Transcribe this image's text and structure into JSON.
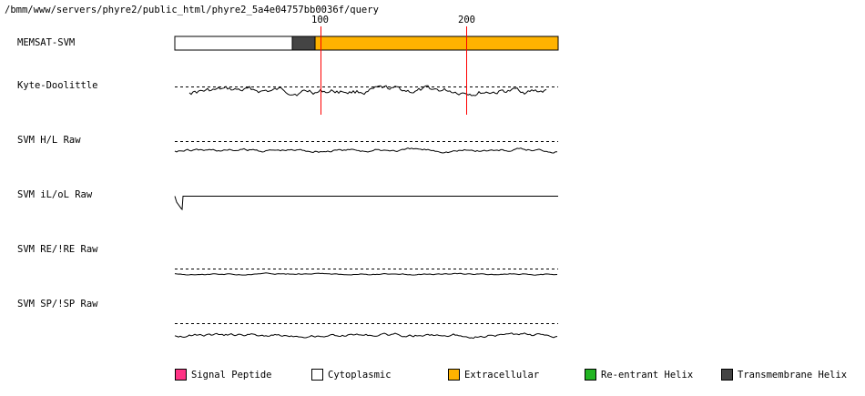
{
  "header": {
    "path": "/bmm/www/servers/phyre2/public_html/phyre2_5a4e04757bb0036f/query"
  },
  "ruler": {
    "ticks": [
      {
        "label": "100",
        "position": 100
      },
      {
        "label": "200",
        "position": 200
      }
    ],
    "sequence_length": 262,
    "marker_color": "#ff0000"
  },
  "tracks": [
    {
      "id": "memsat",
      "label": "MEMSAT-SVM"
    },
    {
      "id": "kd",
      "label": "Kyte-Doolittle"
    },
    {
      "id": "hl",
      "label": "SVM H/L Raw"
    },
    {
      "id": "io",
      "label": "SVM iL/oL Raw"
    },
    {
      "id": "re",
      "label": "SVM RE/!RE Raw"
    },
    {
      "id": "sp",
      "label": "SVM SP/!SP Raw"
    }
  ],
  "memsat_segments": [
    {
      "type": "Cytoplasmic",
      "start": 1,
      "end": 80,
      "color": "#ffffff"
    },
    {
      "type": "Transmembrane Helix",
      "start": 81,
      "end": 96,
      "color": "#444444"
    },
    {
      "type": "Extracellular",
      "start": 97,
      "end": 262,
      "color": "#ffb300"
    }
  ],
  "legend": [
    {
      "label": "Signal Peptide",
      "color": "#ff3385"
    },
    {
      "label": "Cytoplasmic",
      "color": "#ffffff"
    },
    {
      "label": "Extracellular",
      "color": "#ffb300"
    },
    {
      "label": "Re-entrant Helix",
      "color": "#22b522"
    },
    {
      "label": "Transmembrane Helix",
      "color": "#444444"
    }
  ]
}
